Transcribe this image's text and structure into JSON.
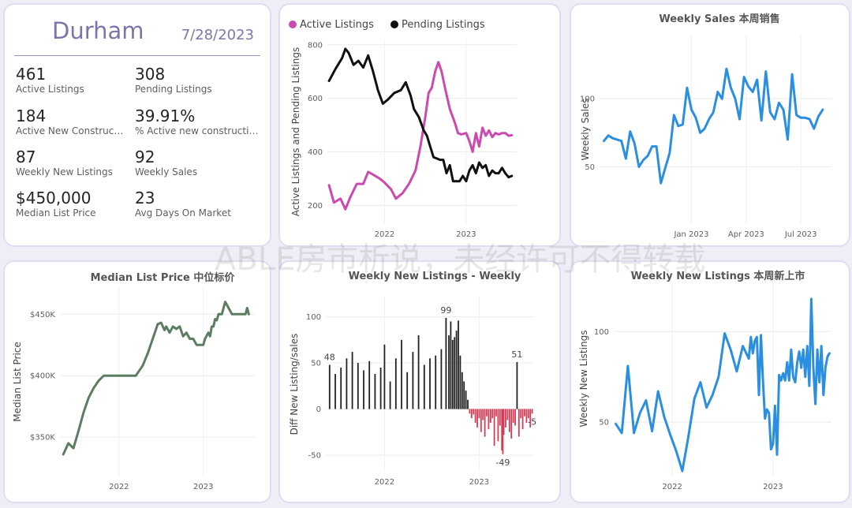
{
  "kpi": {
    "city": "Durham",
    "date": "7/28/2023",
    "items": [
      {
        "value": "461",
        "label": "Active Listings"
      },
      {
        "value": "308",
        "label": "Pending Listings"
      },
      {
        "value": "184",
        "label": "Active New Constructi..."
      },
      {
        "value": "39.91%",
        "label": "% Active new constructions"
      },
      {
        "value": "87",
        "label": "Weekly New Listings"
      },
      {
        "value": "92",
        "label": "Weekly Sales"
      },
      {
        "value": "$450,000",
        "label": "Median List Price"
      },
      {
        "value": "23",
        "label": "Avg Days On Market"
      }
    ]
  },
  "watermark": "ABLE房市析说，未经许可不得转载",
  "colors": {
    "active": "#cc4ab0",
    "pending": "#111111",
    "blue": "#2a8fe0",
    "green": "#5b7d62",
    "positive": "#222222",
    "negative": "#d23c55"
  },
  "chart_data": [
    {
      "type": "line",
      "title": "",
      "ylabel": "Active Listings and Pending Listings",
      "legend": "top-left",
      "ylim": [
        130,
        820
      ],
      "xlim": [
        2021.3,
        2023.62
      ],
      "xticks": [
        2022,
        2023
      ],
      "xtick_labels": [
        "2022",
        "2023"
      ],
      "yticks": [
        200,
        400,
        600,
        800
      ],
      "series": [
        {
          "name": "Active Listings",
          "color": "#cc4ab0",
          "x": [
            2021.32,
            2021.38,
            2021.46,
            2021.52,
            2021.58,
            2021.66,
            2021.74,
            2021.8,
            2021.86,
            2021.94,
            2022.0,
            2022.08,
            2022.14,
            2022.22,
            2022.3,
            2022.38,
            2022.44,
            2022.5,
            2022.54,
            2022.58,
            2022.62,
            2022.66,
            2022.7,
            2022.74,
            2022.8,
            2022.86,
            2022.9,
            2022.94,
            2023.0,
            2023.04,
            2023.08,
            2023.12,
            2023.16,
            2023.2,
            2023.24,
            2023.28,
            2023.32,
            2023.36,
            2023.4,
            2023.44,
            2023.48,
            2023.52,
            2023.56
          ],
          "y": [
            275,
            210,
            225,
            185,
            230,
            280,
            280,
            325,
            315,
            300,
            285,
            260,
            225,
            245,
            280,
            330,
            420,
            530,
            620,
            640,
            700,
            735,
            700,
            640,
            560,
            510,
            470,
            465,
            470,
            440,
            400,
            470,
            420,
            490,
            460,
            480,
            455,
            470,
            465,
            470,
            470,
            460,
            462
          ]
        },
        {
          "name": "Pending Listings",
          "color": "#111111",
          "x": [
            2021.32,
            2021.4,
            2021.48,
            2021.52,
            2021.56,
            2021.62,
            2021.68,
            2021.74,
            2021.8,
            2021.86,
            2021.92,
            2021.98,
            2022.04,
            2022.12,
            2022.2,
            2022.26,
            2022.32,
            2022.36,
            2022.42,
            2022.48,
            2022.52,
            2022.56,
            2022.6,
            2022.64,
            2022.68,
            2022.72,
            2022.76,
            2022.8,
            2022.84,
            2022.88,
            2022.92,
            2022.96,
            2023.0,
            2023.04,
            2023.08,
            2023.12,
            2023.16,
            2023.2,
            2023.24,
            2023.28,
            2023.32,
            2023.36,
            2023.4,
            2023.44,
            2023.48,
            2023.52,
            2023.56
          ],
          "y": [
            665,
            710,
            750,
            785,
            770,
            725,
            740,
            715,
            760,
            700,
            630,
            580,
            595,
            620,
            630,
            660,
            610,
            560,
            530,
            480,
            460,
            420,
            380,
            375,
            370,
            370,
            320,
            350,
            290,
            290,
            290,
            310,
            290,
            330,
            350,
            320,
            360,
            340,
            350,
            310,
            330,
            320,
            320,
            340,
            320,
            305,
            310
          ]
        }
      ]
    },
    {
      "type": "line",
      "title": "Weekly Sales 本周销售",
      "ylabel": "Weekly Sales",
      "ylim": [
        8,
        147
      ],
      "xlim": [
        2022.58,
        2023.64
      ],
      "xticks": [
        2023.0,
        2023.25,
        2023.5
      ],
      "xtick_labels": [
        "Jan 2023",
        "Apr 2023",
        "Jul 2023"
      ],
      "yticks": [
        50,
        100
      ],
      "series": [
        {
          "name": "Weekly Sales",
          "color": "#2a8fe0",
          "x": [
            2022.6,
            2022.62,
            2022.64,
            2022.66,
            2022.68,
            2022.7,
            2022.72,
            2022.74,
            2022.76,
            2022.78,
            2022.8,
            2022.82,
            2022.84,
            2022.86,
            2022.88,
            2022.9,
            2022.92,
            2022.94,
            2022.96,
            2022.98,
            2023.0,
            2023.02,
            2023.04,
            2023.06,
            2023.08,
            2023.1,
            2023.12,
            2023.14,
            2023.16,
            2023.18,
            2023.2,
            2023.22,
            2023.24,
            2023.26,
            2023.28,
            2023.3,
            2023.32,
            2023.34,
            2023.36,
            2023.38,
            2023.4,
            2023.42,
            2023.44,
            2023.46,
            2023.48,
            2023.5,
            2023.52,
            2023.54,
            2023.56,
            2023.58,
            2023.6
          ],
          "y": [
            69,
            73,
            71,
            70,
            69,
            56,
            76,
            67,
            50,
            55,
            58,
            65,
            65,
            38,
            49,
            60,
            88,
            80,
            81,
            108,
            92,
            86,
            75,
            78,
            85,
            90,
            105,
            100,
            122,
            108,
            100,
            85,
            116,
            109,
            105,
            114,
            84,
            120,
            90,
            85,
            97,
            92,
            70,
            118,
            88,
            86,
            86,
            85,
            78,
            87,
            92
          ]
        }
      ]
    },
    {
      "type": "line",
      "title": "Median List Price 中位标价",
      "ylabel": "Median List Price",
      "ylim": [
        318000,
        472000
      ],
      "xlim": [
        2021.3,
        2023.62
      ],
      "xticks": [
        2022,
        2023
      ],
      "xtick_labels": [
        "2022",
        "2023"
      ],
      "yticks": [
        350000,
        400000,
        450000
      ],
      "ytick_labels": [
        "$350K",
        "$400K",
        "$450K"
      ],
      "series": [
        {
          "name": "Median List Price",
          "color": "#5b7d62",
          "x": [
            2021.34,
            2021.4,
            2021.46,
            2021.52,
            2021.58,
            2021.64,
            2021.7,
            2021.76,
            2021.82,
            2021.88,
            2021.94,
            2022.0,
            2022.06,
            2022.12,
            2022.2,
            2022.28,
            2022.34,
            2022.4,
            2022.46,
            2022.5,
            2022.54,
            2022.56,
            2022.6,
            2022.64,
            2022.68,
            2022.72,
            2022.76,
            2022.8,
            2022.84,
            2022.88,
            2022.92,
            2022.96,
            2023.0,
            2023.02,
            2023.06,
            2023.08,
            2023.1,
            2023.12,
            2023.14,
            2023.16,
            2023.18,
            2023.22,
            2023.26,
            2023.3,
            2023.34,
            2023.38,
            2023.42,
            2023.46,
            2023.5,
            2023.52,
            2023.54
          ],
          "y": [
            336000,
            345000,
            341000,
            355000,
            370000,
            382000,
            390000,
            396000,
            400000,
            400000,
            400000,
            400000,
            400000,
            400000,
            400000,
            408000,
            418000,
            430000,
            442000,
            443000,
            437000,
            440000,
            435000,
            440000,
            438000,
            440000,
            432000,
            435000,
            430000,
            430000,
            425000,
            425000,
            425000,
            430000,
            435000,
            432000,
            440000,
            440000,
            446000,
            445000,
            450000,
            450000,
            460000,
            455000,
            450000,
            450000,
            450000,
            450000,
            450000,
            455000,
            450000
          ]
        }
      ]
    },
    {
      "type": "bar",
      "title": "Weekly New Listings - Weekly",
      "ylabel": "Diff New Listing/sales",
      "ylim": [
        -68,
        122
      ],
      "xlim": [
        2021.38,
        2023.58
      ],
      "xticks": [
        2022,
        2023
      ],
      "xtick_labels": [
        "2022",
        "2023"
      ],
      "yticks": [
        -50,
        0,
        50,
        100
      ],
      "data_labels": [
        {
          "x": 2021.42,
          "value": 48,
          "text": "48"
        },
        {
          "x": 2022.65,
          "value": 99,
          "text": "99"
        },
        {
          "x": 2023.4,
          "value": 51,
          "text": "51"
        },
        {
          "x": 2023.25,
          "value": -49,
          "text": "-49"
        },
        {
          "x": 2023.56,
          "value": -5,
          "text": "-5"
        }
      ],
      "x": [
        2021.42,
        2021.48,
        2021.54,
        2021.6,
        2021.66,
        2021.72,
        2021.78,
        2021.84,
        2021.9,
        2021.96,
        2022.0,
        2022.06,
        2022.12,
        2022.18,
        2022.24,
        2022.3,
        2022.36,
        2022.42,
        2022.48,
        2022.54,
        2022.6,
        2022.65,
        2022.68,
        2022.7,
        2022.72,
        2022.74,
        2022.76,
        2022.78,
        2022.8,
        2022.82,
        2022.84,
        2022.86,
        2022.88,
        2022.9,
        2022.92,
        2022.94,
        2022.96,
        2022.98,
        2023.0,
        2023.02,
        2023.04,
        2023.06,
        2023.08,
        2023.1,
        2023.12,
        2023.14,
        2023.16,
        2023.18,
        2023.2,
        2023.22,
        2023.24,
        2023.25,
        2023.26,
        2023.28,
        2023.3,
        2023.32,
        2023.34,
        2023.36,
        2023.38,
        2023.4,
        2023.42,
        2023.44,
        2023.46,
        2023.48,
        2023.5,
        2023.52,
        2023.54,
        2023.56
      ],
      "values": [
        48,
        38,
        45,
        55,
        62,
        50,
        42,
        52,
        38,
        45,
        70,
        30,
        55,
        75,
        40,
        62,
        80,
        48,
        55,
        58,
        65,
        99,
        80,
        95,
        75,
        78,
        85,
        96,
        58,
        40,
        30,
        20,
        10,
        -5,
        -10,
        -6,
        -15,
        -20,
        -10,
        -25,
        -12,
        -30,
        -8,
        -22,
        -15,
        -10,
        -40,
        -8,
        -35,
        -18,
        -45,
        -49,
        -28,
        -20,
        -12,
        -25,
        -32,
        -15,
        -18,
        51,
        -30,
        -10,
        -22,
        -8,
        -15,
        -10,
        -20,
        -5
      ]
    },
    {
      "type": "line",
      "title": "Weekly New Listings  本周新上市",
      "ylabel": "Weekly New Listings",
      "ylim": [
        20,
        128
      ],
      "xlim": [
        2021.42,
        2023.58
      ],
      "xticks": [
        2022,
        2023
      ],
      "xtick_labels": [
        "2022",
        "2023"
      ],
      "yticks": [
        50,
        100
      ],
      "series": [
        {
          "name": "Weekly New Listings",
          "color": "#2a8fe0",
          "x": [
            2021.44,
            2021.5,
            2021.56,
            2021.62,
            2021.68,
            2021.74,
            2021.8,
            2021.86,
            2021.92,
            2021.98,
            2022.04,
            2022.1,
            2022.16,
            2022.22,
            2022.28,
            2022.34,
            2022.4,
            2022.46,
            2022.52,
            2022.58,
            2022.64,
            2022.7,
            2022.76,
            2022.78,
            2022.8,
            2022.82,
            2022.84,
            2022.86,
            2022.88,
            2022.9,
            2022.92,
            2022.94,
            2022.96,
            2022.98,
            2023.0,
            2023.02,
            2023.04,
            2023.06,
            2023.08,
            2023.1,
            2023.12,
            2023.14,
            2023.16,
            2023.18,
            2023.2,
            2023.22,
            2023.24,
            2023.26,
            2023.28,
            2023.3,
            2023.32,
            2023.34,
            2023.36,
            2023.38,
            2023.4,
            2023.42,
            2023.44,
            2023.46,
            2023.48,
            2023.5,
            2023.52,
            2023.54,
            2023.56
          ],
          "y": [
            49,
            44,
            81,
            44,
            55,
            62,
            45,
            67,
            53,
            43,
            34,
            23,
            42,
            63,
            72,
            58,
            65,
            75,
            99,
            90,
            78,
            92,
            85,
            97,
            88,
            95,
            97,
            65,
            98,
            73,
            52,
            57,
            55,
            35,
            38,
            59,
            32,
            76,
            73,
            77,
            73,
            83,
            73,
            90,
            75,
            72,
            83,
            89,
            80,
            90,
            75,
            92,
            70,
            118,
            80,
            60,
            90,
            72,
            92,
            65,
            80,
            86,
            88
          ]
        }
      ]
    }
  ]
}
